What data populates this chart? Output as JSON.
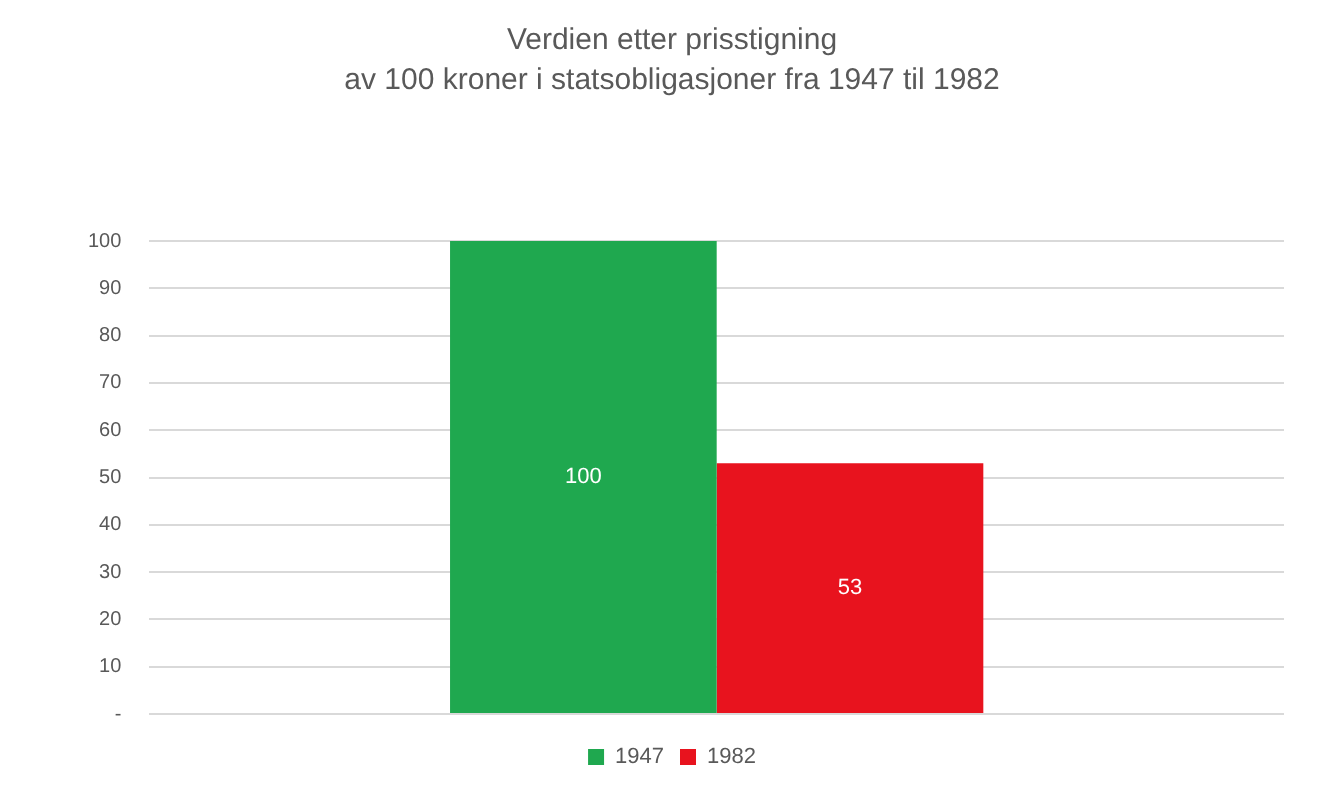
{
  "chart_data": {
    "type": "bar",
    "title": "Verdien etter prisstigning\nav 100 kroner i statsobligasjoner fra 1947 til 1982",
    "categories": [
      null
    ],
    "series": [
      {
        "name": "1947",
        "color": "#1fa84f",
        "values": [
          100
        ]
      },
      {
        "name": "1982",
        "color": "#e8131e",
        "values": [
          53
        ]
      }
    ],
    "ylim": [
      0,
      100
    ],
    "yticks": [
      {
        "value": 0,
        "label": "-"
      },
      10,
      20,
      30,
      40,
      50,
      60,
      70,
      80,
      90,
      100
    ],
    "grid": "y",
    "legend": "bottom",
    "data_labels": true,
    "tick_labels": "y"
  }
}
